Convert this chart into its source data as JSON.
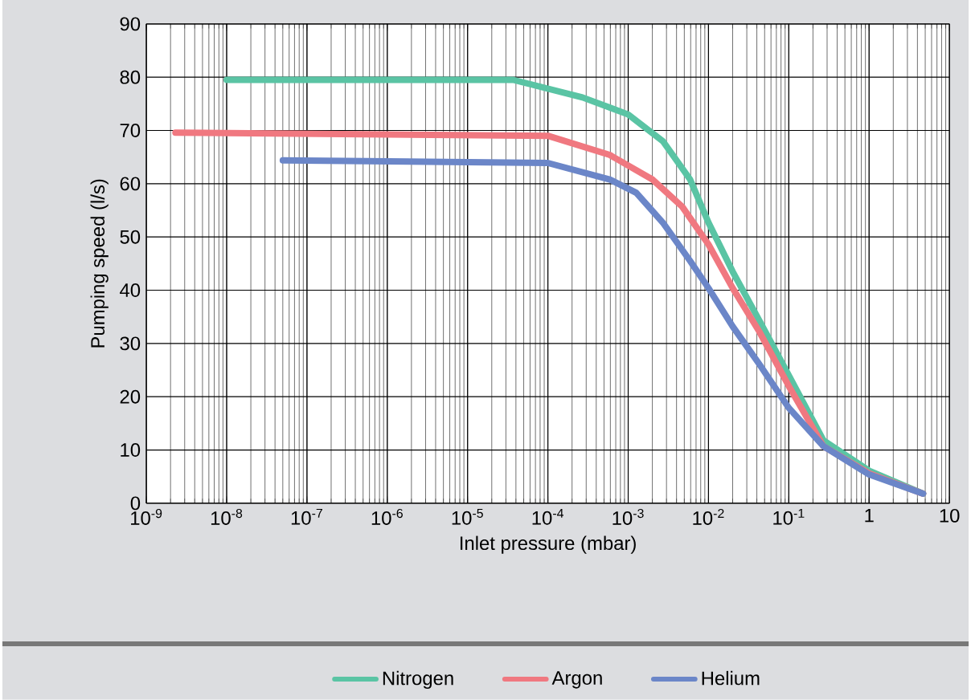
{
  "chart_data": {
    "type": "line",
    "xlabel": "Inlet pressure (mbar)",
    "ylabel": "Pumping speed (l/s)",
    "log": "x",
    "grid": true,
    "legend": "bottom",
    "marker": "none",
    "line_style": "solid",
    "xlim": [
      1e-09,
      10
    ],
    "ylim": [
      0,
      90
    ],
    "xticks": [
      {
        "value": 1e-09,
        "label": "10$^{-9}$"
      },
      {
        "value": 1e-08,
        "label": "10$^{-8}$"
      },
      {
        "value": 1e-07,
        "label": "10$^{-7}$"
      },
      {
        "value": 1e-06,
        "label": "10$^{-6}$"
      },
      {
        "value": 1e-05,
        "label": "10$^{-5}$"
      },
      {
        "value": 0.0001,
        "label": "10$^{-4}$"
      },
      {
        "value": 0.001,
        "label": "10$^{-3}$"
      },
      {
        "value": 0.01,
        "label": "10$^{-2}$"
      },
      {
        "value": 0.1,
        "label": "10$^{-1}$"
      },
      1,
      10
    ],
    "yticks": [
      0,
      10,
      20,
      30,
      40,
      50,
      60,
      70,
      80,
      90
    ],
    "series": [
      {
        "name": "Nitrogen",
        "color": "#5ac4a4",
        "x": [
          1e-08,
          3.7e-05,
          0.00027,
          0.001,
          0.0027,
          0.0059,
          0.01,
          0.02,
          0.043,
          0.1,
          0.27,
          1,
          4.7
        ],
        "values": [
          79.5,
          79.5,
          76.2,
          73,
          68,
          60.8,
          52.7,
          43.5,
          34.3,
          24,
          11.8,
          6.1,
          1.8
        ]
      },
      {
        "name": "Argon",
        "color": "#f07880",
        "x": [
          2.3e-09,
          0.0001,
          0.00059,
          0.002,
          0.0047,
          0.01,
          0.02,
          0.043,
          0.1,
          0.27,
          1,
          4.7
        ],
        "values": [
          69.6,
          69,
          65.4,
          60.8,
          55.7,
          48.6,
          40.4,
          32.2,
          22,
          10.7,
          5.6,
          1.8
        ]
      },
      {
        "name": "Helium",
        "color": "#6b86c8",
        "x": [
          5e-08,
          0.0001,
          0.00059,
          0.00126,
          0.0027,
          0.0059,
          0.01,
          0.02,
          0.043,
          0.1,
          0.27,
          1,
          4.7
        ],
        "values": [
          64.4,
          63.9,
          60.8,
          58.3,
          52.7,
          45.5,
          40.4,
          33.2,
          26.1,
          17.9,
          10.7,
          5.4,
          1.8
        ]
      }
    ]
  }
}
